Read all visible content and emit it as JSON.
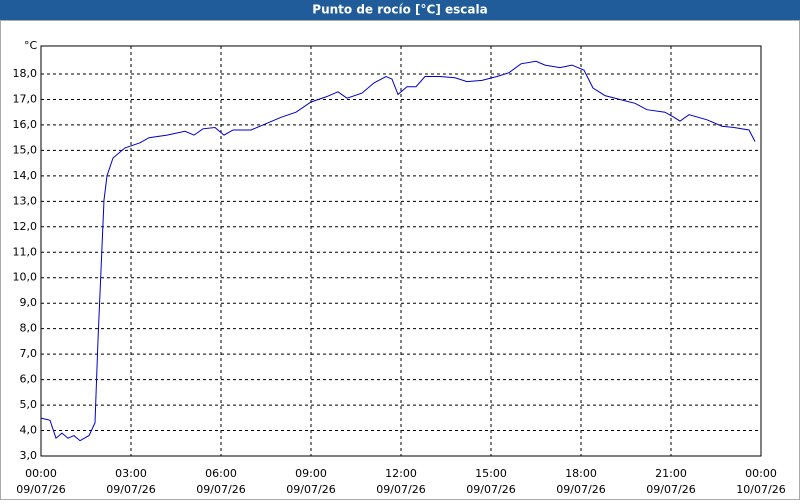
{
  "chart_data": {
    "type": "line",
    "title": "Punto de rocío [°C] escala",
    "y_unit": "°C",
    "x": [
      0,
      0.3,
      0.5,
      0.7,
      0.9,
      1.1,
      1.3,
      1.6,
      1.8,
      1.9,
      2.1,
      2.2,
      2.4,
      2.8,
      3.3,
      3.6,
      4.2,
      4.8,
      5.1,
      5.4,
      5.8,
      6.1,
      6.4,
      7.0,
      7.5,
      8.0,
      8.5,
      9.0,
      9.5,
      9.9,
      10.2,
      10.7,
      11.1,
      11.5,
      11.7,
      11.9,
      12.2,
      12.5,
      12.8,
      13.3,
      13.8,
      14.2,
      14.7,
      15.2,
      15.6,
      16.0,
      16.5,
      16.8,
      17.3,
      17.7,
      18.1,
      18.4,
      18.8,
      19.3,
      19.8,
      20.2,
      20.8,
      21.1,
      21.3,
      21.6,
      22.2,
      22.7,
      23.1,
      23.6,
      23.8
    ],
    "series": [
      {
        "name": "Punto de rocío",
        "color": "#0000c8",
        "values": [
          4.49,
          4.4,
          3.7,
          3.9,
          3.7,
          3.8,
          3.6,
          3.8,
          4.3,
          7.55,
          13.05,
          14.0,
          14.7,
          15.1,
          15.3,
          15.5,
          15.6,
          15.75,
          15.6,
          15.85,
          15.9,
          15.6,
          15.8,
          15.8,
          16.05,
          16.3,
          16.5,
          16.9,
          17.1,
          17.3,
          17.05,
          17.25,
          17.65,
          17.9,
          17.8,
          17.2,
          17.5,
          17.5,
          17.9,
          17.9,
          17.85,
          17.7,
          17.75,
          17.9,
          18.05,
          18.4,
          18.5,
          18.35,
          18.25,
          18.35,
          18.15,
          17.45,
          17.15,
          17.0,
          16.85,
          16.6,
          16.5,
          16.3,
          16.15,
          16.4,
          16.2,
          15.95,
          15.9,
          15.8,
          15.35
        ]
      }
    ],
    "xlim": [
      0,
      24
    ],
    "ylim": [
      3,
      19.1
    ],
    "xticks": [
      {
        "value": 0,
        "label": "00:00"
      },
      {
        "value": 3,
        "label": "03:00"
      },
      {
        "value": 6,
        "label": "06:00"
      },
      {
        "value": 9,
        "label": "09:00"
      },
      {
        "value": 12,
        "label": "12:00"
      },
      {
        "value": 15,
        "label": "15:00"
      },
      {
        "value": 18,
        "label": "18:00"
      },
      {
        "value": 21,
        "label": "21:00"
      },
      {
        "value": 24,
        "label": "00:00"
      }
    ],
    "xtick_dates": [
      "09/07/26",
      "09/07/26",
      "09/07/26",
      "09/07/26",
      "09/07/26",
      "09/07/26",
      "09/07/26",
      "09/07/26",
      "10/07/26"
    ],
    "yticks": [
      {
        "value": 3,
        "label": "3,0"
      },
      {
        "value": 4,
        "label": "4,0"
      },
      {
        "value": 5,
        "label": "5,0"
      },
      {
        "value": 6,
        "label": "6,0"
      },
      {
        "value": 7,
        "label": "7,0"
      },
      {
        "value": 8,
        "label": "8,0"
      },
      {
        "value": 9,
        "label": "9,0"
      },
      {
        "value": 10,
        "label": "10,0"
      },
      {
        "value": 11,
        "label": "11,0"
      },
      {
        "value": 12,
        "label": "12,0"
      },
      {
        "value": 13,
        "label": "13,0"
      },
      {
        "value": 14,
        "label": "14,0"
      },
      {
        "value": 15,
        "label": "15,0"
      },
      {
        "value": 16,
        "label": "16,0"
      },
      {
        "value": 17,
        "label": "17,0"
      },
      {
        "value": 18,
        "label": "18,0"
      }
    ],
    "grid": true
  }
}
